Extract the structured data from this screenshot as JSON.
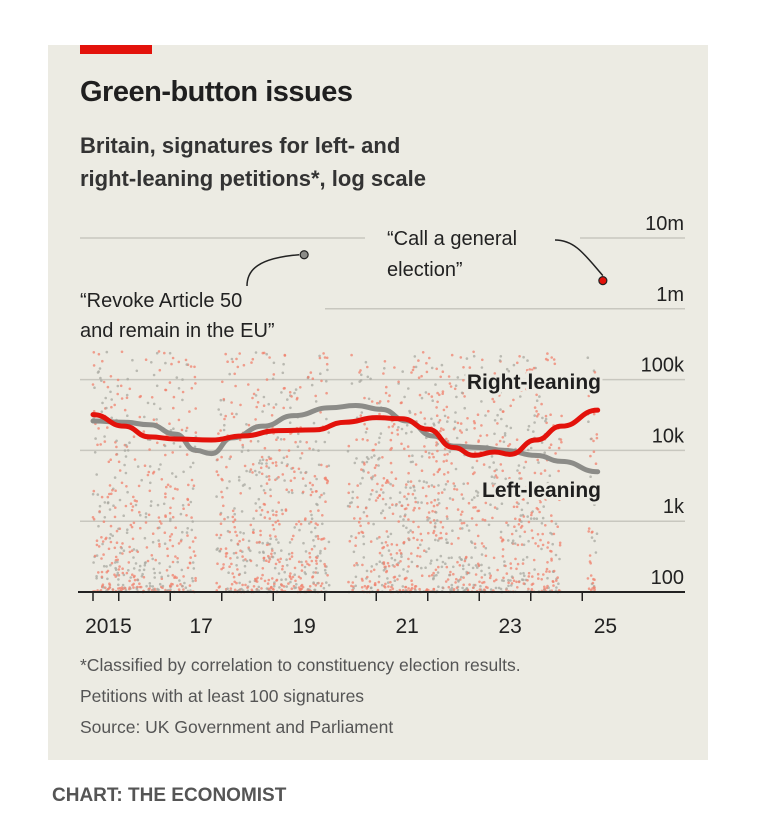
{
  "title": "Green-button issues",
  "subtitle_line1": "Britain, signatures for left- and",
  "subtitle_line2": "right-leaning petitions*, log scale",
  "footnote1": "*Classified by correlation to constituency election results.",
  "footnote2": "Petitions with at least 100 signatures",
  "source": "Source: UK Government and Parliament",
  "credit": "CHART: THE ECONOMIST",
  "colors": {
    "right": "#e3120b",
    "left": "#8c8c88",
    "dot_right": "#f0826e",
    "dot_left": "#a8a8a0"
  },
  "chart_data": {
    "type": "line",
    "title": "Green-button issues",
    "ylabel": "Signatures (log scale)",
    "ylim": [
      100,
      10000000
    ],
    "yticks": [
      {
        "v": 100,
        "label": "100"
      },
      {
        "v": 1000,
        "label": "1k"
      },
      {
        "v": 10000,
        "label": "10k"
      },
      {
        "v": 100000,
        "label": "100k"
      },
      {
        "v": 1000000,
        "label": "1m"
      },
      {
        "v": 10000000,
        "label": "10m"
      }
    ],
    "xlim": [
      2014.9,
      2025.2
    ],
    "xticklabels": [
      {
        "v": 2015.2,
        "label": "2015"
      },
      {
        "v": 2017,
        "label": "17"
      },
      {
        "v": 2019,
        "label": "19"
      },
      {
        "v": 2021,
        "label": "21"
      },
      {
        "v": 2023,
        "label": "23"
      },
      {
        "v": 2024.85,
        "label": "25"
      }
    ],
    "xticks": [
      2014.9,
      2015.4,
      2016.4,
      2017.4,
      2018.4,
      2019.4,
      2020.4,
      2021.4,
      2022.4,
      2023.4,
      2024.4
    ],
    "series": [
      {
        "name": "Right-leaning",
        "x": [
          2014.9,
          2015.5,
          2016.0,
          2016.5,
          2017.2,
          2017.8,
          2018.5,
          2019.2,
          2019.8,
          2020.4,
          2020.9,
          2021.4,
          2021.9,
          2022.3,
          2022.7,
          2023.0,
          2023.5,
          2024.0,
          2024.7
        ],
        "y": [
          32000,
          22000,
          15500,
          14500,
          14000,
          16000,
          19000,
          19500,
          25000,
          29000,
          28000,
          20000,
          11000,
          8500,
          9500,
          8800,
          14000,
          22000,
          37000
        ]
      },
      {
        "name": "Left-leaning",
        "x": [
          2014.9,
          2015.5,
          2016.0,
          2016.5,
          2016.9,
          2017.2,
          2017.6,
          2018.2,
          2018.8,
          2019.5,
          2020.0,
          2020.5,
          2021.0,
          2021.5,
          2021.9,
          2022.4,
          2022.9,
          2023.5,
          2024.0,
          2024.7
        ],
        "y": [
          26000,
          25000,
          23000,
          17000,
          10000,
          9000,
          15000,
          22000,
          31000,
          40000,
          43000,
          38000,
          26000,
          16000,
          11500,
          11000,
          10000,
          8500,
          7000,
          5000
        ]
      }
    ],
    "annotations": [
      {
        "text_line1": "“Revoke Article 50",
        "text_line2": "and remain in the EU”",
        "x": 2019.0,
        "y": 5800000
      },
      {
        "text_line1": "“Call a general",
        "text_line2": "election”",
        "x": 2024.8,
        "y": 2500000
      }
    ],
    "dot_gaps": [
      [
        2016.9,
        2017.3
      ],
      [
        2019.5,
        2019.85
      ],
      [
        2024.0,
        2024.5
      ]
    ]
  }
}
